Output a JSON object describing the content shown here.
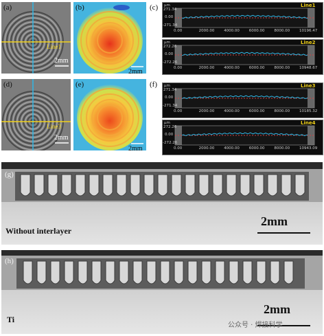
{
  "panels": {
    "a": {
      "label": "(a)",
      "line": "Line1",
      "scale": "2mm"
    },
    "b": {
      "label": "(b)",
      "scale": "2mm"
    },
    "c": {
      "label": "(c)"
    },
    "d": {
      "label": "(d)",
      "line": "Line3",
      "scale": "2mm"
    },
    "e": {
      "label": "(e)",
      "scale": "2mm"
    },
    "f": {
      "label": "(f)"
    },
    "g": {
      "label": "(g)",
      "caption": "Without interlayer",
      "scale": "2mm"
    },
    "h": {
      "label": "(h)",
      "caption": "Ti",
      "scale": "2mm"
    }
  },
  "profiles": [
    {
      "line": "Line1",
      "unit": "μm",
      "y_top": "271.34",
      "y_mid": "0.00",
      "y_bot": "-271.34",
      "x_ticks": [
        "0.00",
        "2000.00",
        "4000.00",
        "6000.00",
        "8000.00",
        "10196.47"
      ]
    },
    {
      "line": "Line2",
      "unit": "μm",
      "y_top": "272.26",
      "y_mid": "0.00",
      "y_bot": "-272.26",
      "x_ticks": [
        "0.00",
        "2000.00",
        "4000.00",
        "6000.00",
        "8000.00",
        "10948.67"
      ]
    },
    {
      "line": "Line3",
      "unit": "μm",
      "y_top": "271.34",
      "y_mid": "0.00",
      "y_bot": "-271.34",
      "x_ticks": [
        "0.00",
        "2000.00",
        "4000.00",
        "6000.00",
        "8000.00",
        "10185.32"
      ]
    },
    {
      "line": "Line4",
      "unit": "μm",
      "y_top": "272.26",
      "y_mid": "0.00",
      "y_bot": "-272.26",
      "x_ticks": [
        "0.00",
        "2000.00",
        "4000.00",
        "6000.00",
        "8000.00",
        "10943.09"
      ]
    }
  ],
  "watermark": "公众号 · 焊接科学",
  "colors": {
    "trace": "#2fb7e6",
    "line_label": "#f2d21a",
    "profile_bg": "#0d0d0d"
  }
}
